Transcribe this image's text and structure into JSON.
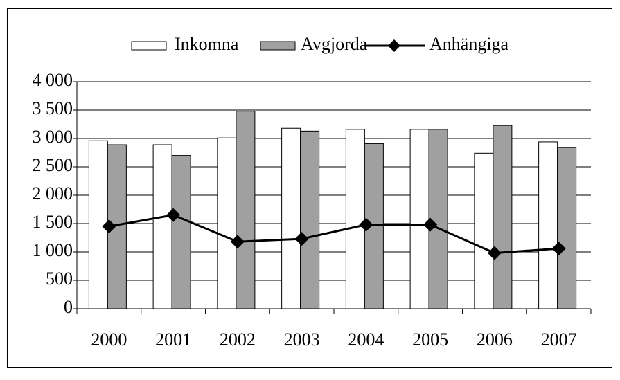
{
  "chart_data": {
    "type": "bar_line",
    "categories": [
      "2000",
      "2001",
      "2002",
      "2003",
      "2004",
      "2005",
      "2006",
      "2007"
    ],
    "series": [
      {
        "name": "Inkomna",
        "type": "bar",
        "color": "#ffffff",
        "values": [
          2960,
          2890,
          3010,
          3180,
          3160,
          3160,
          2740,
          2940
        ]
      },
      {
        "name": "Avgjorda",
        "type": "bar",
        "color": "#a0a0a0",
        "values": [
          2890,
          2700,
          3480,
          3130,
          2910,
          3160,
          3230,
          2840
        ]
      },
      {
        "name": "Anhängiga",
        "type": "line",
        "color": "#000000",
        "values": [
          1450,
          1650,
          1180,
          1230,
          1480,
          1480,
          980,
          1060
        ]
      }
    ],
    "ylim": [
      0,
      4000
    ],
    "yticks": [
      0,
      500,
      {
        "value": 1000,
        "label": "1 000"
      },
      {
        "value": 1500,
        "label": "1 500"
      },
      {
        "value": 2000,
        "label": "2 000"
      },
      {
        "value": 2500,
        "label": "2 500"
      },
      {
        "value": 3000,
        "label": "3 000"
      },
      {
        "value": 3500,
        "label": "3 500"
      },
      {
        "value": 4000,
        "label": "4 000"
      }
    ],
    "grid": true,
    "legend": "top"
  }
}
